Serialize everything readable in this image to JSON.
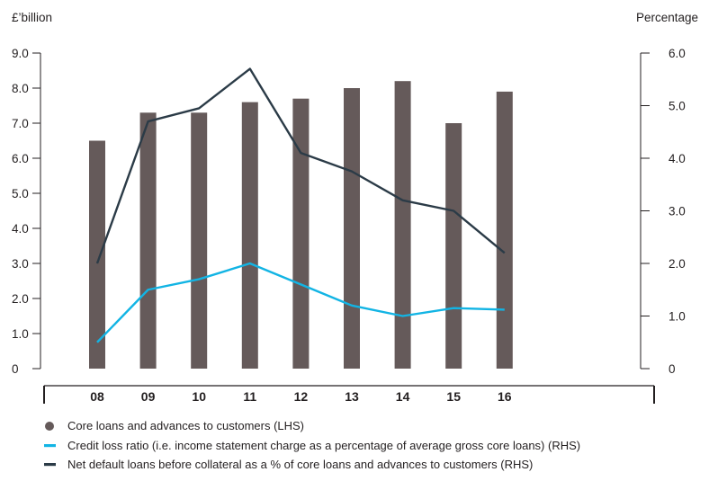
{
  "chart_data": {
    "type": "bar",
    "left_axis_unit": "£’billion",
    "right_axis_unit": "Percentage",
    "categories": [
      "08",
      "09",
      "10",
      "11",
      "12",
      "13",
      "14",
      "15",
      "16"
    ],
    "left_ticks": [
      "0",
      "1.0",
      "2.0",
      "3.0",
      "4.0",
      "5.0",
      "6.0",
      "7.0",
      "8.0",
      "9.0"
    ],
    "right_ticks": [
      "0",
      "1.0",
      "2.0",
      "3.0",
      "4.0",
      "5.0",
      "6.0"
    ],
    "ylim_left": [
      0,
      9
    ],
    "ylim_right": [
      0,
      6
    ],
    "series": [
      {
        "name": "Core loans and advances to customers (LHS)",
        "kind": "bar",
        "axis": "left",
        "color": "#655a5a",
        "values": [
          6.5,
          7.3,
          7.3,
          7.6,
          7.7,
          8.0,
          8.2,
          7.0,
          7.9
        ]
      },
      {
        "name": "Credit loss ratio (i.e. income statement charge as a percentage of average gross core loans) (RHS)",
        "kind": "line",
        "axis": "right",
        "color": "#12b4e4",
        "values": [
          0.5,
          1.5,
          1.7,
          2.0,
          1.6,
          1.2,
          1.0,
          1.15,
          1.12
        ]
      },
      {
        "name": "Net default loans before collateral as a % of core loans and advances to customers (RHS)",
        "kind": "line",
        "axis": "right",
        "color": "#2b3b47",
        "values": [
          2.0,
          4.7,
          4.95,
          5.7,
          4.1,
          3.75,
          3.2,
          3.0,
          2.2
        ]
      }
    ],
    "legend_position": "bottom-left",
    "grid": false
  }
}
